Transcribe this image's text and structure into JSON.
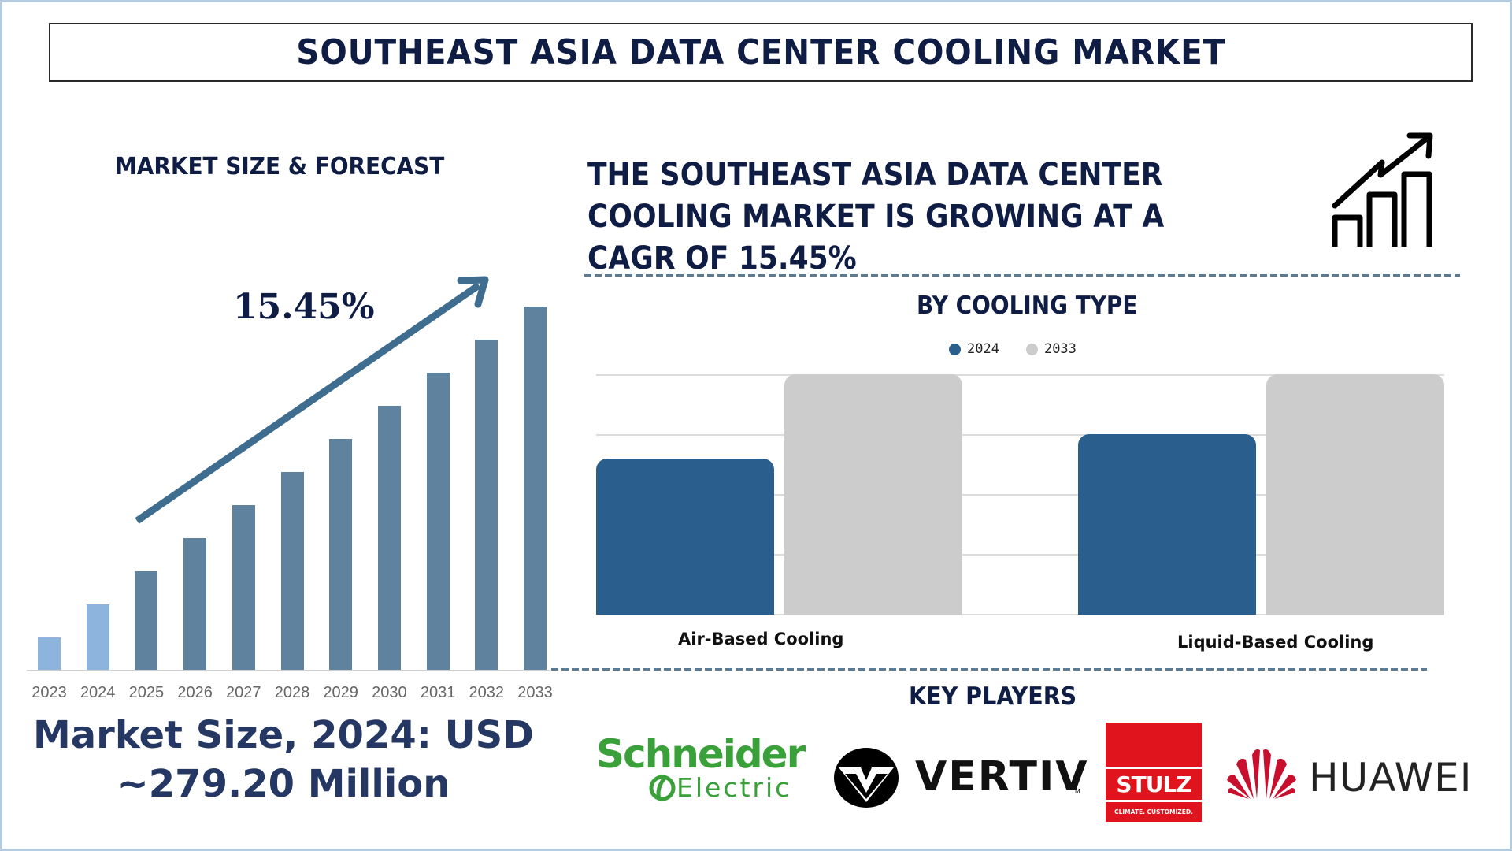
{
  "title": "SOUTHEAST ASIA DATA CENTER COOLING MARKET",
  "left_panel": {
    "heading": "MARKET SIZE & FORECAST",
    "cagr_label": "15.45%",
    "market_size_line1": "Market Size, 2024: USD",
    "market_size_line2": "~279.20 Million"
  },
  "right_panel": {
    "headline_line1": "THE SOUTHEAST ASIA DATA CENTER",
    "headline_line2": "COOLING MARKET IS GROWING AT A",
    "headline_line3": "CAGR OF 15.45%",
    "growth_icon": "growth-chart-icon",
    "segment_heading": "BY COOLING TYPE",
    "key_players_heading": "KEY PLAYERS",
    "key_players": [
      {
        "name": "Schneider",
        "sub": "Electric"
      },
      {
        "name": "VERTIV",
        "sub": "TM"
      },
      {
        "name": "STULZ",
        "sub": "CLIMATE. CUSTOMIZED."
      },
      {
        "name": "HUAWEI",
        "sub": ""
      }
    ]
  },
  "colors": {
    "navy": "#0f1d45",
    "bar_historic": "#8cb4dc",
    "bar_forecast": "#5f829f",
    "arrow": "#3f6d90",
    "series_2024": "#2a5e8c",
    "series_2033": "#cccccc",
    "schneider_green": "#3aa03a",
    "stulz_red": "#e0141c",
    "huawei_red": "#c8102e"
  },
  "chart_data": [
    {
      "type": "bar",
      "title": "MARKET SIZE & FORECAST",
      "categories": [
        "2023",
        "2024",
        "2025",
        "2026",
        "2027",
        "2028",
        "2029",
        "2030",
        "2031",
        "2032",
        "2033"
      ],
      "values": [
        1.0,
        2.0,
        3.0,
        4.0,
        5.0,
        6.0,
        7.0,
        8.0,
        9.0,
        10.0,
        11.0
      ],
      "value_note": "relative bar heights (no axis values shown)",
      "historic": [
        "2023",
        "2024"
      ],
      "annotation": "15.45%",
      "xlabel": "",
      "ylabel": "",
      "grid": false
    },
    {
      "type": "bar",
      "title": "BY COOLING TYPE",
      "categories": [
        "Air-Based Cooling",
        "Liquid-Based Cooling"
      ],
      "series": [
        {
          "name": "2024",
          "values": [
            2.6,
            3.0
          ]
        },
        {
          "name": "2033",
          "values": [
            4.0,
            4.0
          ]
        }
      ],
      "ylim": [
        0,
        4
      ],
      "value_note": "relative heights read from 4 gridline intervals (no axis labels shown)",
      "legend_position": "top",
      "grid": true
    }
  ]
}
